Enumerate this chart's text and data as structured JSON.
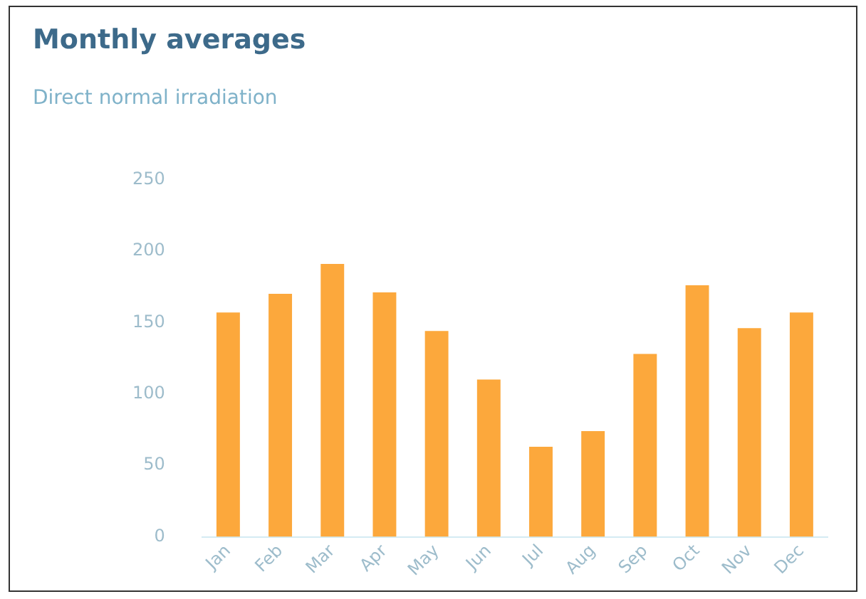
{
  "chart_data": {
    "type": "bar",
    "title": "Monthly averages",
    "subtitle": "Direct normal irradiation",
    "categories": [
      "Jan",
      "Feb",
      "Mar",
      "Apr",
      "May",
      "Jun",
      "Jul",
      "Aug",
      "Sep",
      "Oct",
      "Nov",
      "Dec"
    ],
    "values": [
      157,
      170,
      191,
      171,
      144,
      110,
      63,
      74,
      128,
      176,
      146,
      157
    ],
    "color": "#fca83c",
    "ylim": [
      0,
      250
    ],
    "yticks": [
      0,
      50,
      100,
      150,
      200,
      250
    ],
    "grid": false,
    "legend": false
  }
}
